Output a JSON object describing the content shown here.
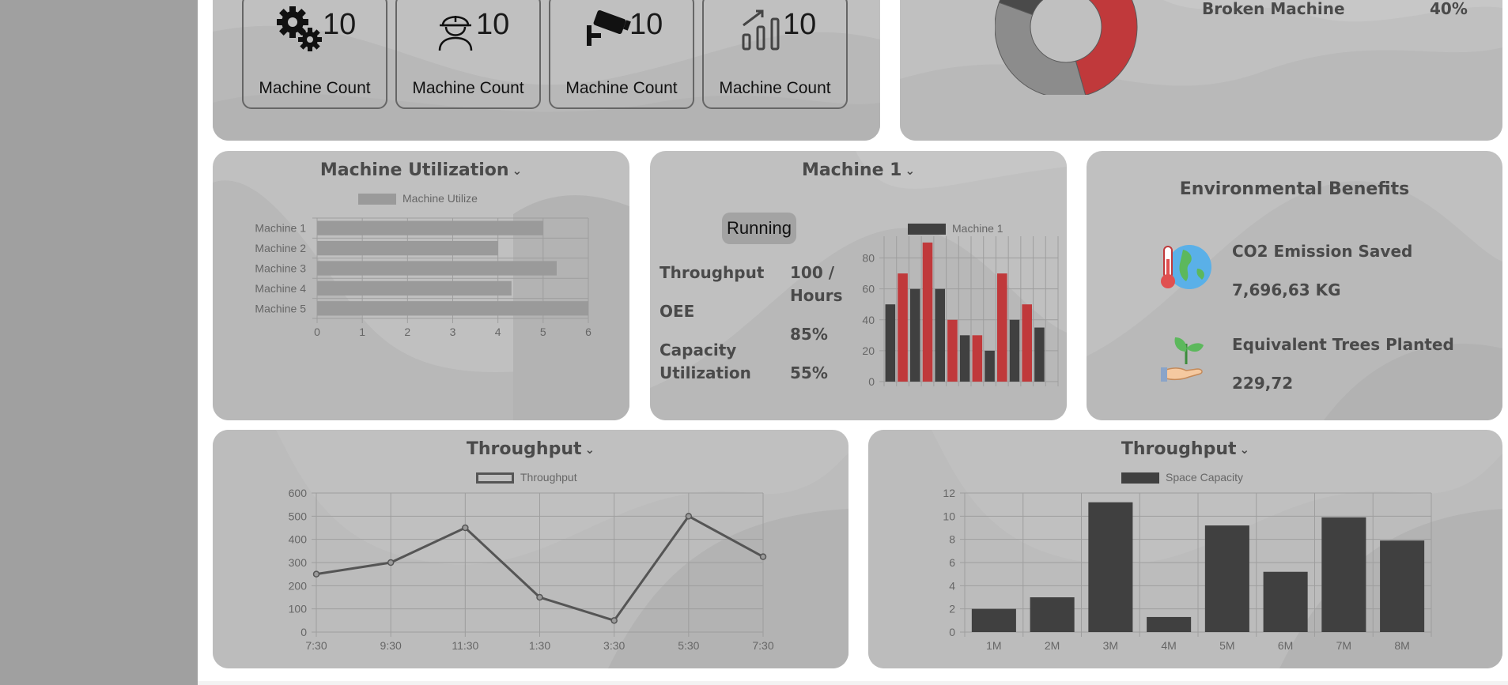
{
  "machine_counts": [
    {
      "icon": "gears-icon",
      "value": "10",
      "label": "Machine Count"
    },
    {
      "icon": "worker-icon",
      "value": "10",
      "label": "Machine Count"
    },
    {
      "icon": "camera-icon",
      "value": "10",
      "label": "Machine Count"
    },
    {
      "icon": "growth-chart-icon",
      "value": "10",
      "label": "Machine Count"
    }
  ],
  "donut": {
    "legend_label": "Broken Machine",
    "legend_value": "40%",
    "colors": {
      "red": "#c0393b",
      "mid": "#8c8c8c",
      "dark": "#4a4a4a"
    }
  },
  "utilization": {
    "title": "Machine Utilization",
    "legend": "Machine Utilize"
  },
  "machine1": {
    "title": "Machine 1",
    "status": "Running",
    "throughput_label": "Throughput",
    "throughput_value_line1": "100 /",
    "throughput_value_line2": "Hours",
    "oee_label": "OEE",
    "oee_value": "85%",
    "capacity_label_line1": "Capacity",
    "capacity_label_line2": "Utilization",
    "capacity_value": "55%",
    "legend": "Machine 1"
  },
  "environment": {
    "title": "Environmental Benefits",
    "co2_label": "CO2 Emission Saved",
    "co2_value": "7,696,63 KG",
    "trees_label": "Equivalent Trees Planted",
    "trees_value": "229,72"
  },
  "throughput_line": {
    "title": "Throughput",
    "legend": "Throughput"
  },
  "throughput_bar": {
    "title": "Throughput",
    "legend": "Space Capacity"
  },
  "chart_data": [
    {
      "type": "bar",
      "orientation": "horizontal",
      "categories": [
        "Machine 1",
        "Machine 2",
        "Machine 3",
        "Machine 4",
        "Machine 5"
      ],
      "series": [
        {
          "name": "Machine Utilize",
          "values": [
            5,
            4,
            5.3,
            4.3,
            6
          ]
        }
      ],
      "xlim": [
        0,
        6
      ],
      "xticks": [
        "0",
        "1",
        "2",
        "3",
        "4",
        "5",
        "6"
      ],
      "grid": true,
      "legend": "top",
      "color": "#9a9a9a"
    },
    {
      "type": "bar",
      "categories": [
        "",
        "",
        "",
        "",
        "",
        "",
        "",
        "",
        "",
        "",
        "",
        "",
        "",
        ""
      ],
      "series": [
        {
          "name": "Machine 1",
          "values": [
            50,
            70,
            60,
            90,
            60,
            40,
            30,
            30,
            20,
            70,
            40,
            50,
            35,
            0
          ]
        }
      ],
      "bar_colors": [
        "#404040",
        "#c0393b",
        "#404040",
        "#c0393b",
        "#404040",
        "#c0393b",
        "#404040",
        "#c0393b",
        "#404040",
        "#c0393b",
        "#404040",
        "#c0393b",
        "#404040",
        "#c0393b"
      ],
      "ylim": [
        0,
        90
      ],
      "yticks": [
        "0",
        "20",
        "40",
        "60",
        "80"
      ],
      "grid": true,
      "legend": "top"
    },
    {
      "type": "line",
      "x": [
        "7:30",
        "9:30",
        "11:30",
        "1:30",
        "3:30",
        "5:30",
        "7:30"
      ],
      "series": [
        {
          "name": "Throughput",
          "values": [
            250,
            300,
            450,
            150,
            50,
            500,
            325
          ]
        }
      ],
      "ylim": [
        0,
        600
      ],
      "yticks": [
        "0",
        "100",
        "200",
        "300",
        "400",
        "500",
        "600"
      ],
      "grid": true,
      "legend": "top",
      "color": "#555555"
    },
    {
      "type": "bar",
      "categories": [
        "1M",
        "2M",
        "3M",
        "4M",
        "5M",
        "6M",
        "7M",
        "8M"
      ],
      "series": [
        {
          "name": "Space Capacity",
          "values": [
            2,
            3,
            11.2,
            1.3,
            9.2,
            5.2,
            9.9,
            7.9
          ]
        }
      ],
      "ylim": [
        0,
        12
      ],
      "yticks": [
        "0",
        "2",
        "4",
        "6",
        "8",
        "10",
        "12"
      ],
      "grid": true,
      "legend": "top",
      "color": "#404040"
    },
    {
      "type": "pie",
      "donut": true,
      "slices": [
        {
          "label": "Broken Machine",
          "value": 40,
          "color": "#c0393b"
        },
        {
          "label": "",
          "value": 35,
          "color": "#8c8c8c"
        },
        {
          "label": "",
          "value": 25,
          "color": "#4a4a4a"
        }
      ],
      "legend": "right"
    }
  ]
}
